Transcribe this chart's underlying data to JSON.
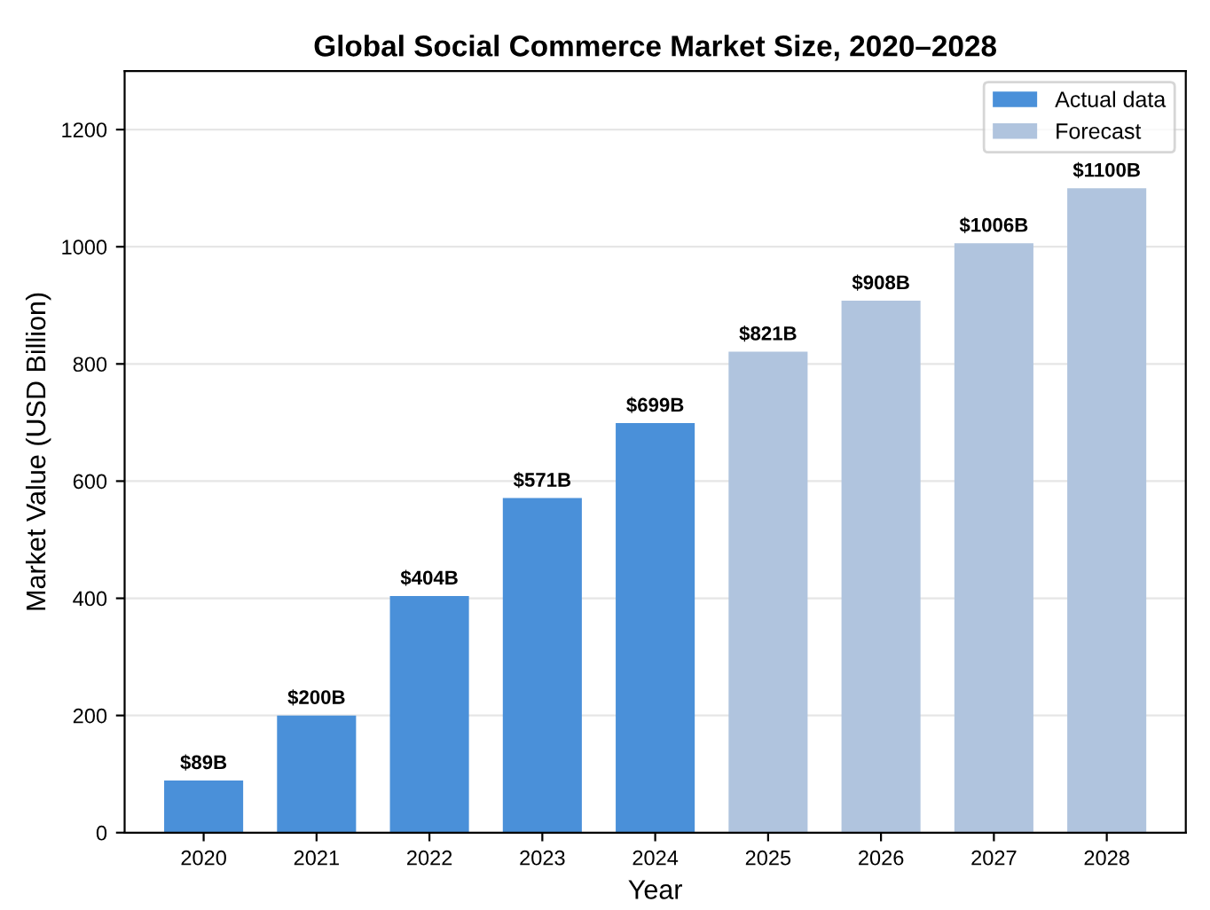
{
  "chart_data": {
    "type": "bar",
    "title": "Global Social Commerce Market Size, 2020–2028",
    "xlabel": "Year",
    "ylabel": "Market Value (USD Billion)",
    "categories": [
      "2020",
      "2021",
      "2022",
      "2023",
      "2024",
      "2025",
      "2026",
      "2027",
      "2028"
    ],
    "series": [
      {
        "name": "Actual data",
        "color": "#4a90d9",
        "values": [
          89,
          200,
          404,
          571,
          699,
          null,
          null,
          null,
          null
        ],
        "value_labels": [
          "$89B",
          "$200B",
          "$404B",
          "$571B",
          "$699B",
          null,
          null,
          null,
          null
        ]
      },
      {
        "name": "Forecast",
        "color": "#b0c4de",
        "values": [
          null,
          null,
          null,
          null,
          null,
          821,
          908,
          1006,
          1100
        ],
        "value_labels": [
          null,
          null,
          null,
          null,
          null,
          "$821B",
          "$908B",
          "$1006B",
          "$1100B"
        ]
      }
    ],
    "ylim": [
      0,
      1300
    ],
    "yticks": [
      0,
      200,
      400,
      600,
      800,
      1000,
      1200
    ],
    "grid": "y",
    "legend": "top right"
  }
}
